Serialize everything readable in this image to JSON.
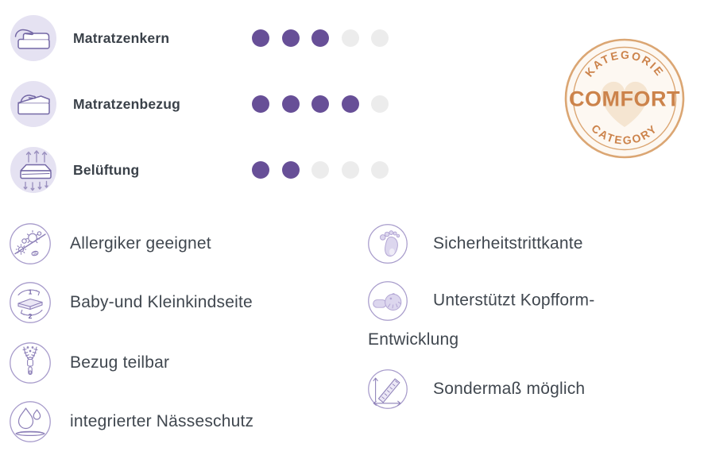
{
  "colors": {
    "background": "#ffffff",
    "dot-filled": "#674f97",
    "dot-empty": "#ececec",
    "title-color": "#3a4149",
    "text-color": "#40474f",
    "icon-circle-fill": "#e5e2f2",
    "icon-stroke": "#7468a5",
    "outline-circle": "#a79bcb",
    "badge-border": "#dba673",
    "badge-text": "#cc834b",
    "badge-bg": "#fdf8f2",
    "badge-heart": "#f5e5d1"
  },
  "ratings": {
    "rows": [
      {
        "label": "Matratzenkern",
        "icon": "mattress-core-icon",
        "value": 3,
        "max": 5
      },
      {
        "label": "Matratzenbezug",
        "icon": "mattress-cover-icon",
        "value": 4,
        "max": 5
      },
      {
        "label": "Belüftung",
        "icon": "ventilation-icon",
        "value": 2,
        "max": 5
      }
    ]
  },
  "badge": {
    "top_text": "KATEGORIE",
    "center_text": "COMFORT",
    "bottom_text": "CATEGORY",
    "icon": "heart-icon"
  },
  "features": {
    "left": [
      {
        "label": "Allergiker geeignet",
        "icon": "allergy-friendly-icon"
      },
      {
        "label": "Baby-und Kleinkindseite",
        "icon": "baby-toddler-side-icon"
      },
      {
        "label": "Bezug teilbar",
        "icon": "divisible-cover-icon"
      },
      {
        "label": "integrierter Nässeschutz",
        "icon": "moisture-protection-icon"
      }
    ],
    "right": [
      {
        "label": "Sicherheitstrittkante",
        "icon": "safety-step-edge-icon"
      },
      {
        "label": "Unterstützt Kopfform-Entwicklung",
        "icon": "head-shape-support-icon"
      },
      {
        "label": "Sondermaß möglich",
        "icon": "custom-size-icon"
      }
    ]
  },
  "icons": {
    "baby_side_numbers": [
      "1",
      "2"
    ]
  }
}
